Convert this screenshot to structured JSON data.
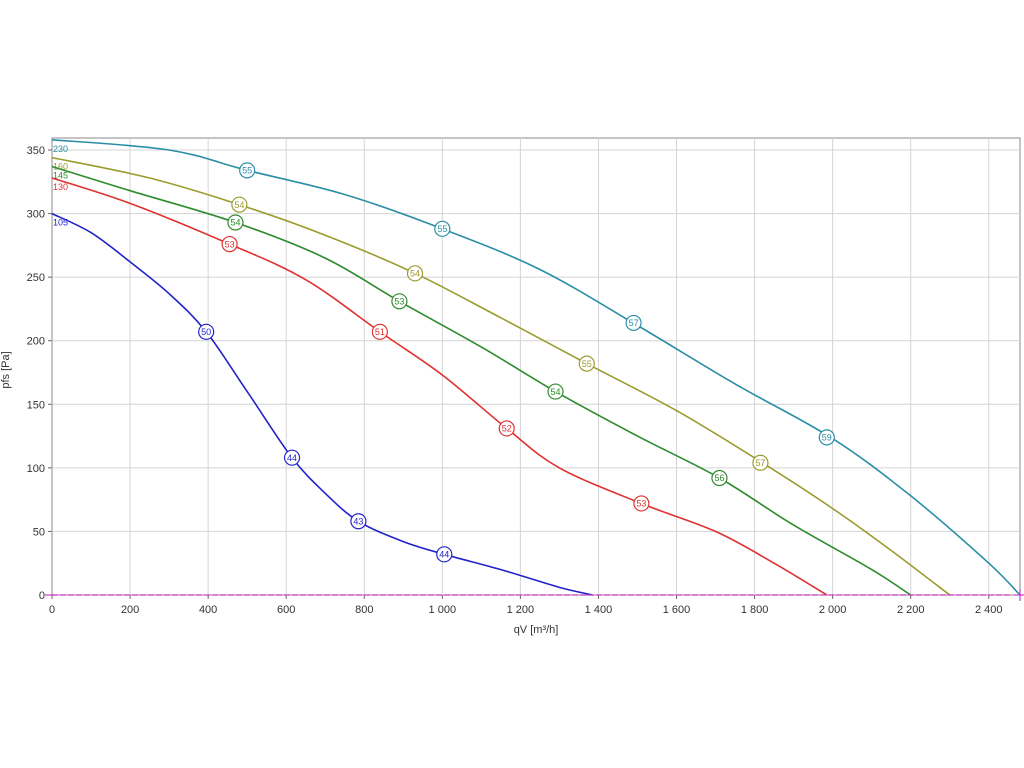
{
  "chart_data": {
    "type": "line",
    "title": "",
    "xlabel": "qV [m³/h]",
    "ylabel": "pfs [Pa]",
    "xlim": [
      0,
      2480
    ],
    "ylim": [
      0,
      360
    ],
    "grid": true,
    "x_ticks": [
      0,
      200,
      400,
      600,
      800,
      1000,
      1200,
      1400,
      1600,
      1800,
      2000,
      2200,
      2400
    ],
    "x_tick_labels": [
      "0",
      "200",
      "400",
      "600",
      "800",
      "1 000",
      "1 200",
      "1 400",
      "1 600",
      "1 800",
      "2 000",
      "2 200",
      "2 400"
    ],
    "y_ticks": [
      0,
      50,
      100,
      150,
      200,
      250,
      300,
      350
    ],
    "y_tick_labels": [
      "0",
      "50",
      "100",
      "150",
      "200",
      "250",
      "300",
      "350"
    ],
    "series": [
      {
        "name": "230",
        "color": "#2a8fa6",
        "points": [
          [
            0,
            358
          ],
          [
            300,
            350
          ],
          [
            500,
            334
          ],
          [
            750,
            315
          ],
          [
            1000,
            288
          ],
          [
            1250,
            256
          ],
          [
            1500,
            212
          ],
          [
            1750,
            166
          ],
          [
            2000,
            123
          ],
          [
            2200,
            78
          ],
          [
            2400,
            25
          ],
          [
            2480,
            0
          ]
        ],
        "markers": [
          [
            500,
            334,
            "55"
          ],
          [
            1000,
            288,
            "55"
          ],
          [
            1490,
            214,
            "57"
          ],
          [
            1985,
            124,
            "59"
          ]
        ]
      },
      {
        "name": "160",
        "color": "#9b9b2e",
        "points": [
          [
            0,
            344
          ],
          [
            250,
            328
          ],
          [
            480,
            307
          ],
          [
            700,
            283
          ],
          [
            930,
            253
          ],
          [
            1150,
            218
          ],
          [
            1370,
            182
          ],
          [
            1600,
            145
          ],
          [
            1820,
            104
          ],
          [
            2000,
            68
          ],
          [
            2150,
            35
          ],
          [
            2300,
            0
          ]
        ],
        "markers": [
          [
            480,
            307,
            "54"
          ],
          [
            930,
            253,
            "54"
          ],
          [
            1370,
            182,
            "55"
          ],
          [
            1815,
            104,
            "57"
          ]
        ]
      },
      {
        "name": "145",
        "color": "#2e8b2e",
        "points": [
          [
            0,
            337
          ],
          [
            200,
            318
          ],
          [
            470,
            293
          ],
          [
            700,
            265
          ],
          [
            890,
            231
          ],
          [
            1100,
            195
          ],
          [
            1290,
            160
          ],
          [
            1500,
            125
          ],
          [
            1710,
            92
          ],
          [
            1900,
            55
          ],
          [
            2100,
            20
          ],
          [
            2200,
            0
          ]
        ],
        "markers": [
          [
            470,
            293,
            "54"
          ],
          [
            890,
            231,
            "53"
          ],
          [
            1290,
            160,
            "54"
          ],
          [
            1710,
            92,
            "56"
          ]
        ]
      },
      {
        "name": "130",
        "color": "#e03030",
        "points": [
          [
            0,
            328
          ],
          [
            200,
            308
          ],
          [
            455,
            276
          ],
          [
            650,
            248
          ],
          [
            840,
            207
          ],
          [
            1000,
            173
          ],
          [
            1165,
            131
          ],
          [
            1300,
            100
          ],
          [
            1510,
            72
          ],
          [
            1700,
            50
          ],
          [
            1850,
            25
          ],
          [
            1985,
            0
          ]
        ],
        "markers": [
          [
            455,
            276,
            "53"
          ],
          [
            840,
            207,
            "51"
          ],
          [
            1165,
            131,
            "52"
          ],
          [
            1510,
            72,
            "53"
          ]
        ]
      },
      {
        "name": "105",
        "color": "#2222cc",
        "points": [
          [
            0,
            300
          ],
          [
            100,
            285
          ],
          [
            200,
            262
          ],
          [
            300,
            237
          ],
          [
            395,
            207
          ],
          [
            500,
            160
          ],
          [
            615,
            108
          ],
          [
            700,
            80
          ],
          [
            785,
            58
          ],
          [
            900,
            42
          ],
          [
            1005,
            32
          ],
          [
            1150,
            20
          ],
          [
            1300,
            6
          ],
          [
            1385,
            0
          ]
        ],
        "markers": [
          [
            395,
            207,
            "50"
          ],
          [
            615,
            108,
            "44"
          ],
          [
            785,
            58,
            "43"
          ],
          [
            1005,
            32,
            "44"
          ]
        ]
      }
    ]
  }
}
